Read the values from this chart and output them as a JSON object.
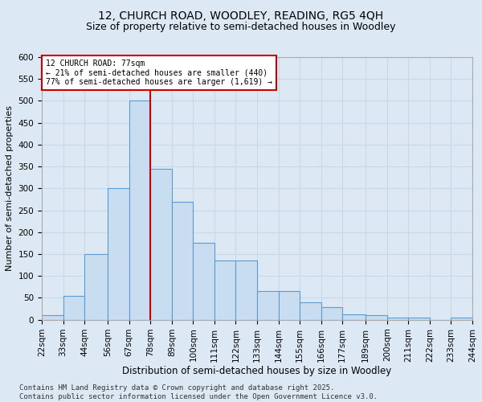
{
  "title1": "12, CHURCH ROAD, WOODLEY, READING, RG5 4QH",
  "title2": "Size of property relative to semi-detached houses in Woodley",
  "xlabel": "Distribution of semi-detached houses by size in Woodley",
  "ylabel": "Number of semi-detached properties",
  "bins": [
    22,
    33,
    44,
    56,
    67,
    78,
    89,
    100,
    111,
    122,
    133,
    144,
    155,
    166,
    177,
    189,
    200,
    211,
    222,
    233,
    244
  ],
  "counts": [
    10,
    55,
    150,
    300,
    500,
    345,
    270,
    175,
    135,
    135,
    65,
    65,
    40,
    28,
    12,
    10,
    5,
    5,
    0,
    5
  ],
  "bar_color": "#c9ddf0",
  "bar_edge_color": "#5b9bd5",
  "vline_x": 78,
  "vline_color": "#cc0000",
  "annotation_text": "12 CHURCH ROAD: 77sqm\n← 21% of semi-detached houses are smaller (440)\n77% of semi-detached houses are larger (1,619) →",
  "annotation_box_facecolor": "#ffffff",
  "annotation_box_edgecolor": "#cc0000",
  "background_color": "#dce9f5",
  "plot_bg_color": "#dce9f5",
  "footer": "Contains HM Land Registry data © Crown copyright and database right 2025.\nContains public sector information licensed under the Open Government Licence v3.0.",
  "ylim": [
    0,
    600
  ],
  "yticks": [
    0,
    50,
    100,
    150,
    200,
    250,
    300,
    350,
    400,
    450,
    500,
    550,
    600
  ],
  "grid_color": "#c8d8e8",
  "title1_fontsize": 10,
  "title2_fontsize": 9,
  "xlabel_fontsize": 8.5,
  "ylabel_fontsize": 8,
  "tick_fontsize": 7.5,
  "footer_fontsize": 6.5,
  "annot_fontsize": 7
}
